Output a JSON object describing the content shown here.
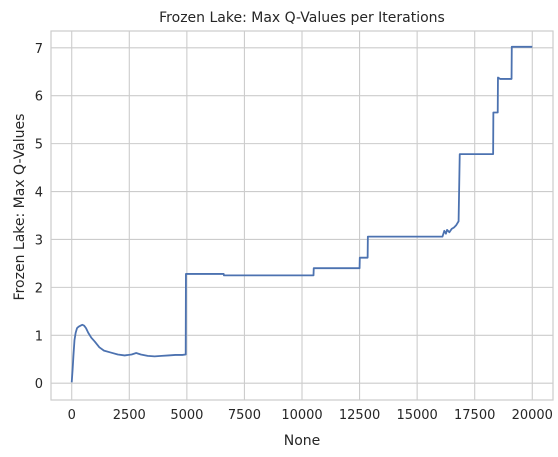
{
  "chart_data": {
    "type": "line",
    "title": "Frozen Lake: Max Q-Values per Iterations",
    "xlabel": "None",
    "ylabel": "Frozen Lake: Max Q-Values",
    "xlim": [
      -900,
      20900
    ],
    "ylim": [
      -0.35,
      7.35
    ],
    "xticks": [
      0,
      2500,
      5000,
      7500,
      10000,
      12500,
      15000,
      17500,
      20000
    ],
    "xtick_labels": [
      "0",
      "2500",
      "5000",
      "7500",
      "10000",
      "12500",
      "15000",
      "17500",
      "20000"
    ],
    "yticks": [
      0,
      1,
      2,
      3,
      4,
      5,
      6,
      7
    ],
    "ytick_labels": [
      "0",
      "1",
      "2",
      "3",
      "4",
      "5",
      "6",
      "7"
    ],
    "grid": true,
    "line_color": "#4c72b0",
    "series": [
      {
        "values": [
          [
            0,
            0.02
          ],
          [
            40,
            0.3
          ],
          [
            80,
            0.62
          ],
          [
            120,
            0.9
          ],
          [
            170,
            1.05
          ],
          [
            230,
            1.15
          ],
          [
            300,
            1.18
          ],
          [
            380,
            1.2
          ],
          [
            460,
            1.22
          ],
          [
            540,
            1.2
          ],
          [
            620,
            1.15
          ],
          [
            720,
            1.05
          ],
          [
            850,
            0.95
          ],
          [
            1000,
            0.87
          ],
          [
            1200,
            0.75
          ],
          [
            1400,
            0.68
          ],
          [
            1700,
            0.64
          ],
          [
            2000,
            0.6
          ],
          [
            2300,
            0.58
          ],
          [
            2600,
            0.6
          ],
          [
            2800,
            0.63
          ],
          [
            3000,
            0.6
          ],
          [
            3300,
            0.57
          ],
          [
            3600,
            0.56
          ],
          [
            3900,
            0.57
          ],
          [
            4200,
            0.58
          ],
          [
            4500,
            0.59
          ],
          [
            4800,
            0.59
          ],
          [
            4950,
            0.6
          ],
          [
            4960,
            2.28
          ],
          [
            6600,
            2.28
          ],
          [
            6610,
            2.25
          ],
          [
            10500,
            2.25
          ],
          [
            10510,
            2.4
          ],
          [
            12500,
            2.4
          ],
          [
            12510,
            2.62
          ],
          [
            12850,
            2.62
          ],
          [
            12860,
            3.06
          ],
          [
            16100,
            3.06
          ],
          [
            16180,
            3.18
          ],
          [
            16250,
            3.12
          ],
          [
            16300,
            3.2
          ],
          [
            16400,
            3.15
          ],
          [
            16500,
            3.22
          ],
          [
            16600,
            3.25
          ],
          [
            16700,
            3.3
          ],
          [
            16800,
            3.38
          ],
          [
            16850,
            4.78
          ],
          [
            18300,
            4.78
          ],
          [
            18310,
            5.65
          ],
          [
            18500,
            5.65
          ],
          [
            18510,
            6.38
          ],
          [
            18600,
            6.35
          ],
          [
            19100,
            6.35
          ],
          [
            19110,
            7.02
          ],
          [
            20000,
            7.02
          ]
        ]
      }
    ]
  }
}
